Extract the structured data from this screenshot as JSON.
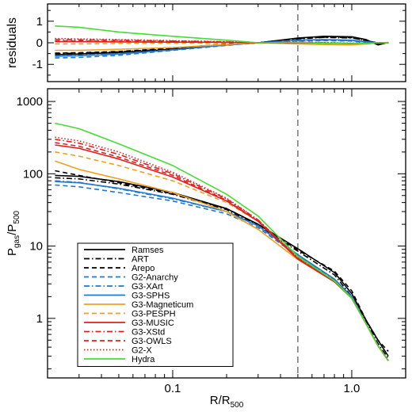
{
  "chart_data": [
    {
      "type": "line",
      "panel": "residuals",
      "ylabel": "residuals",
      "xscale": "log",
      "xlim": [
        0.02,
        2.0
      ],
      "ylim": [
        -1.8,
        1.8
      ],
      "yticks": [
        "-1",
        "0",
        "1"
      ],
      "vline_x": 0.5,
      "x": [
        0.022,
        0.03,
        0.05,
        0.1,
        0.2,
        0.3,
        0.5,
        0.7,
        1.0,
        1.2,
        1.4,
        1.6
      ],
      "series": [
        {
          "name": "Ramses",
          "color": "#000000",
          "style": "solid",
          "values": [
            -0.55,
            -0.52,
            -0.45,
            -0.3,
            -0.1,
            0.0,
            0.22,
            0.3,
            0.28,
            0.15,
            -0.1,
            0.02
          ]
        },
        {
          "name": "ART",
          "color": "#000000",
          "style": "dashdot",
          "values": [
            -0.5,
            -0.48,
            -0.42,
            -0.28,
            -0.08,
            0.0,
            0.18,
            0.25,
            0.22,
            0.12,
            -0.05,
            0.0
          ]
        },
        {
          "name": "Arepo",
          "color": "#000000",
          "style": "dashed",
          "values": [
            -0.48,
            -0.46,
            -0.4,
            -0.25,
            -0.06,
            0.0,
            0.2,
            0.26,
            0.24,
            0.1,
            0.0,
            0.0
          ]
        },
        {
          "name": "G2-Anarchy",
          "color": "#1f77d0",
          "style": "dashed",
          "values": [
            -0.7,
            -0.68,
            -0.58,
            -0.35,
            -0.12,
            0.0,
            0.08,
            0.1,
            0.08,
            0.02,
            0.0,
            0.0
          ]
        },
        {
          "name": "G3-XArt",
          "color": "#1f77d0",
          "style": "dashdot",
          "values": [
            -0.6,
            -0.58,
            -0.5,
            -0.32,
            -0.1,
            0.0,
            0.1,
            0.12,
            0.1,
            0.04,
            0.0,
            0.0
          ]
        },
        {
          "name": "G3-SPHS",
          "color": "#1f77d0",
          "style": "solid",
          "values": [
            -0.62,
            -0.6,
            -0.52,
            -0.33,
            -0.1,
            0.0,
            0.12,
            0.15,
            0.12,
            0.05,
            0.0,
            0.0
          ]
        },
        {
          "name": "G3-Magneticum",
          "color": "#f0a020",
          "style": "solid",
          "values": [
            -0.35,
            -0.35,
            -0.3,
            -0.22,
            -0.08,
            0.0,
            -0.05,
            -0.08,
            -0.1,
            -0.05,
            0.0,
            0.0
          ]
        },
        {
          "name": "G3-PESPH",
          "color": "#f0a020",
          "style": "dashed",
          "values": [
            -0.05,
            -0.05,
            -0.03,
            -0.02,
            0.0,
            0.0,
            0.02,
            0.0,
            -0.05,
            -0.02,
            0.0,
            0.0
          ]
        },
        {
          "name": "G3-MUSIC",
          "color": "#e02020",
          "style": "solid",
          "values": [
            0.05,
            0.05,
            0.04,
            0.03,
            0.02,
            0.0,
            0.0,
            -0.02,
            -0.04,
            -0.02,
            0.0,
            0.0
          ]
        },
        {
          "name": "G3-XStd",
          "color": "#e02020",
          "style": "dashdot",
          "values": [
            0.15,
            0.14,
            0.12,
            0.08,
            0.04,
            0.0,
            0.02,
            0.0,
            -0.03,
            -0.02,
            0.0,
            0.0
          ]
        },
        {
          "name": "G3-OWLS",
          "color": "#e02020",
          "style": "dashed",
          "values": [
            0.08,
            0.08,
            0.07,
            0.05,
            0.02,
            0.0,
            0.0,
            -0.02,
            -0.03,
            -0.02,
            0.0,
            0.0
          ]
        },
        {
          "name": "G2-X",
          "color": "#e02020",
          "style": "dotted",
          "values": [
            0.2,
            0.18,
            0.15,
            0.1,
            0.05,
            0.0,
            0.03,
            0.01,
            -0.02,
            -0.01,
            0.0,
            0.0
          ]
        },
        {
          "name": "Hydra",
          "color": "#44dd33",
          "style": "solid",
          "values": [
            0.78,
            0.72,
            0.5,
            0.3,
            0.12,
            0.0,
            0.02,
            -0.02,
            -0.04,
            -0.02,
            0.0,
            0.0
          ]
        }
      ]
    },
    {
      "type": "line",
      "panel": "pressure",
      "xlabel_main": "R/R",
      "xlabel_sub": "500",
      "ylabel_main": "P",
      "ylabel_sub1": "gas",
      "ylabel_mid": "/P",
      "ylabel_sub2": "500",
      "xscale": "log",
      "yscale": "log",
      "xlim": [
        0.02,
        2.0
      ],
      "ylim": [
        0.15,
        1500
      ],
      "xticks": [
        "0.1",
        "1.0"
      ],
      "yticks": [
        "1",
        "10",
        "100",
        "1000"
      ],
      "vline_x": 0.5,
      "legend_position": "bottom-left",
      "x": [
        0.022,
        0.03,
        0.05,
        0.1,
        0.2,
        0.3,
        0.5,
        0.8,
        1.0,
        1.2,
        1.4,
        1.6
      ],
      "series": [
        {
          "name": "Ramses",
          "color": "#000000",
          "style": "solid",
          "values": [
            95,
            92,
            78,
            55,
            33,
            20,
            9.2,
            4.3,
            2.2,
            0.95,
            0.5,
            0.3
          ]
        },
        {
          "name": "ART",
          "color": "#000000",
          "style": "dashdot",
          "values": [
            88,
            85,
            72,
            52,
            32,
            19,
            8.5,
            4.0,
            2.0,
            0.9,
            0.45,
            0.28
          ]
        },
        {
          "name": "Arepo",
          "color": "#000000",
          "style": "dashed",
          "values": [
            110,
            95,
            75,
            53,
            33,
            20,
            8.8,
            4.5,
            2.4,
            0.95,
            0.5,
            0.35
          ]
        },
        {
          "name": "G2-Anarchy",
          "color": "#1f77d0",
          "style": "dashed",
          "values": [
            70,
            66,
            55,
            42,
            28,
            18,
            7.3,
            3.3,
            1.9,
            0.85,
            0.42,
            0.26
          ]
        },
        {
          "name": "G3-XArt",
          "color": "#1f77d0",
          "style": "dashdot",
          "values": [
            80,
            76,
            62,
            45,
            30,
            19,
            7.5,
            3.4,
            1.95,
            0.85,
            0.42,
            0.26
          ]
        },
        {
          "name": "G3-SPHS",
          "color": "#1f77d0",
          "style": "solid",
          "values": [
            78,
            75,
            63,
            46,
            30,
            19,
            7.6,
            3.5,
            2.0,
            0.85,
            0.42,
            0.26
          ]
        },
        {
          "name": "G3-Magneticum",
          "color": "#f0a020",
          "style": "solid",
          "values": [
            150,
            115,
            85,
            55,
            30,
            17,
            6.5,
            3.2,
            1.9,
            0.85,
            0.42,
            0.26
          ]
        },
        {
          "name": "G3-PESPH",
          "color": "#f0a020",
          "style": "dashed",
          "values": [
            200,
            175,
            130,
            80,
            40,
            22,
            7.0,
            3.3,
            1.9,
            0.85,
            0.42,
            0.26
          ]
        },
        {
          "name": "G3-MUSIC",
          "color": "#e02020",
          "style": "solid",
          "values": [
            250,
            225,
            160,
            90,
            42,
            22,
            6.6,
            3.2,
            1.9,
            0.85,
            0.42,
            0.26
          ]
        },
        {
          "name": "G3-XStd",
          "color": "#e02020",
          "style": "dashdot",
          "values": [
            300,
            265,
            185,
            100,
            45,
            23,
            6.8,
            3.3,
            1.9,
            0.85,
            0.42,
            0.26
          ]
        },
        {
          "name": "G3-OWLS",
          "color": "#e02020",
          "style": "dashed",
          "values": [
            270,
            240,
            170,
            95,
            43,
            22,
            6.7,
            3.3,
            1.9,
            0.85,
            0.42,
            0.26
          ]
        },
        {
          "name": "G2-X",
          "color": "#e02020",
          "style": "dotted",
          "values": [
            320,
            285,
            200,
            105,
            46,
            23,
            6.9,
            3.3,
            1.9,
            0.85,
            0.42,
            0.26
          ]
        },
        {
          "name": "Hydra",
          "color": "#44dd33",
          "style": "solid",
          "values": [
            500,
            420,
            260,
            130,
            52,
            26,
            7.2,
            3.3,
            1.9,
            0.85,
            0.42,
            0.26
          ]
        }
      ]
    }
  ]
}
